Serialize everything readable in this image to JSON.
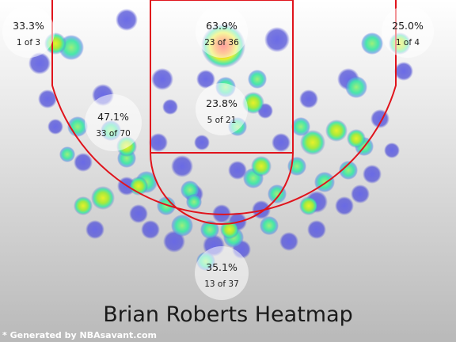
{
  "chart_data": {
    "type": "heatmap",
    "title": "Brian Roberts Heatmap",
    "zones": [
      {
        "name": "left corner three",
        "pct": "33.3%",
        "made": 1,
        "att": 3,
        "label": "1 of 3"
      },
      {
        "name": "restricted area",
        "pct": "63.9%",
        "made": 23,
        "att": 36,
        "label": "23 of 36"
      },
      {
        "name": "right corner three",
        "pct": "25.0%",
        "made": 1,
        "att": 4,
        "label": "1 of 4"
      },
      {
        "name": "left mid-range",
        "pct": "47.1%",
        "made": 33,
        "att": 70,
        "label": "33 of 70"
      },
      {
        "name": "paint",
        "pct": "23.8%",
        "made": 5,
        "att": 21,
        "label": "5 of 21"
      },
      {
        "name": "top of key three",
        "pct": "35.1%",
        "made": 13,
        "att": 37,
        "label": "13 of 37"
      }
    ],
    "colors": {
      "background_top": "#ffffff",
      "background_bottom": "#b9b9b9",
      "court_lines": "#e0141c",
      "cold": "#5a5ad8",
      "cool": "#3ee6a8",
      "warm": "#d8ec2c",
      "hot": "#ff2a2a"
    }
  },
  "footer": {
    "credit": "* Generated by NBAsavant.com"
  }
}
